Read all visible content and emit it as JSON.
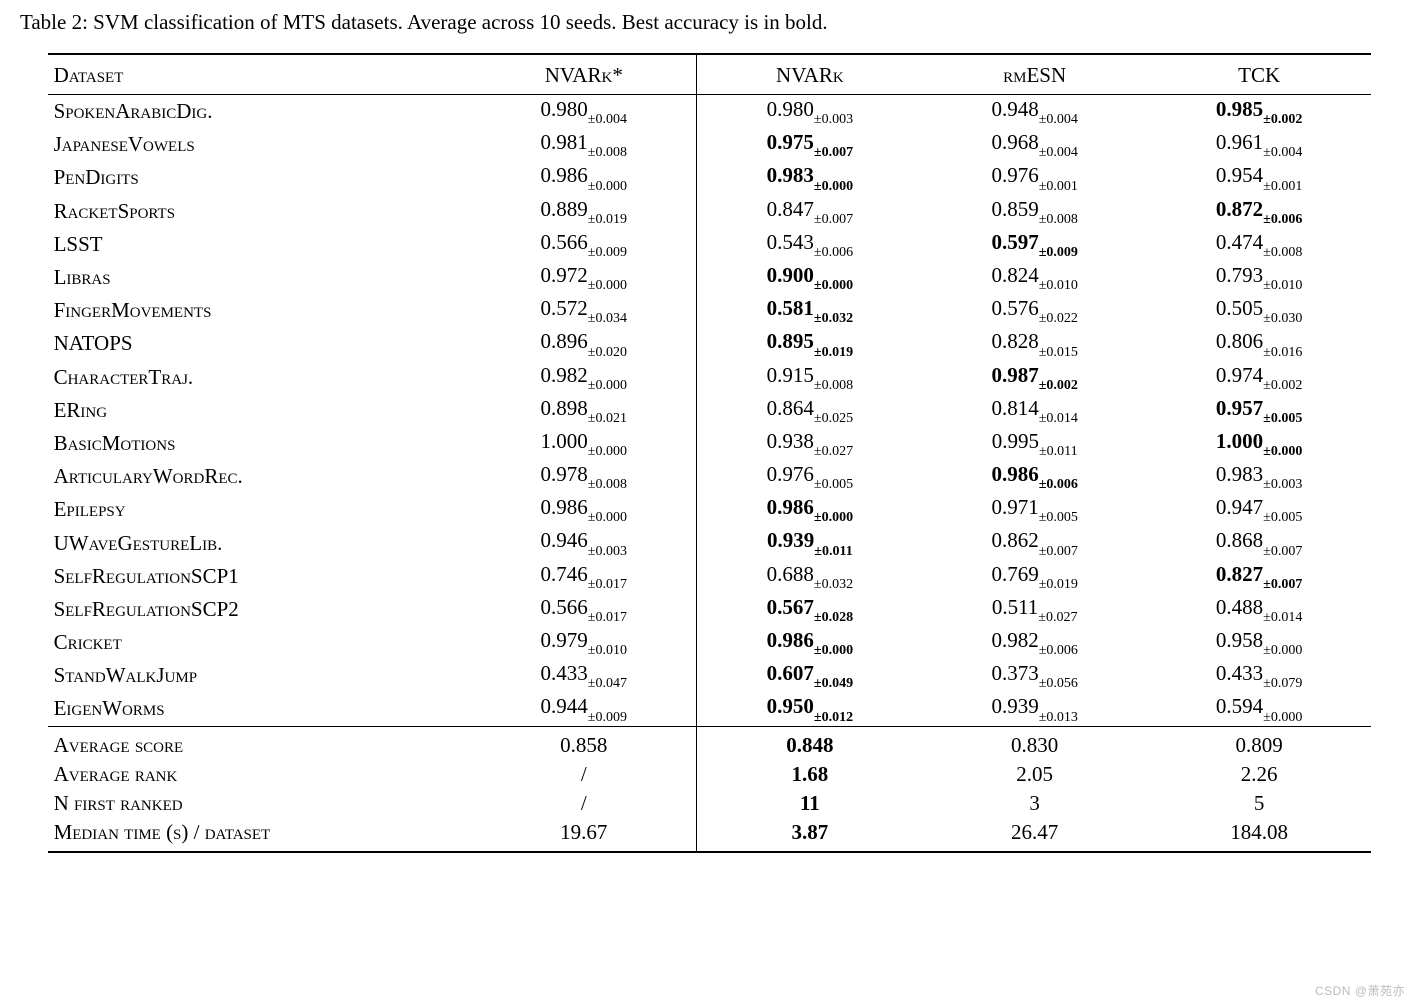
{
  "caption": "Table 2: SVM classification of MTS datasets. Average across 10 seeds. Best accuracy is in bold.",
  "columns": {
    "dataset": "Dataset",
    "col1": "NVARk*",
    "col2": "NVARk",
    "col3": "rmESN",
    "col4": "TCK"
  },
  "rows": [
    {
      "name": "SpokenArabicDig.",
      "c1": {
        "v": "0.980",
        "e": "±0.004",
        "b": false
      },
      "c2": {
        "v": "0.980",
        "e": "±0.003",
        "b": false
      },
      "c3": {
        "v": "0.948",
        "e": "±0.004",
        "b": false
      },
      "c4": {
        "v": "0.985",
        "e": "±0.002",
        "b": true
      }
    },
    {
      "name": "JapaneseVowels",
      "c1": {
        "v": "0.981",
        "e": "±0.008",
        "b": false
      },
      "c2": {
        "v": "0.975",
        "e": "±0.007",
        "b": true
      },
      "c3": {
        "v": "0.968",
        "e": "±0.004",
        "b": false
      },
      "c4": {
        "v": "0.961",
        "e": "±0.004",
        "b": false
      }
    },
    {
      "name": "PenDigits",
      "c1": {
        "v": "0.986",
        "e": "±0.000",
        "b": false
      },
      "c2": {
        "v": "0.983",
        "e": "±0.000",
        "b": true
      },
      "c3": {
        "v": "0.976",
        "e": "±0.001",
        "b": false
      },
      "c4": {
        "v": "0.954",
        "e": "±0.001",
        "b": false
      }
    },
    {
      "name": "RacketSports",
      "c1": {
        "v": "0.889",
        "e": "±0.019",
        "b": false
      },
      "c2": {
        "v": "0.847",
        "e": "±0.007",
        "b": false
      },
      "c3": {
        "v": "0.859",
        "e": "±0.008",
        "b": false
      },
      "c4": {
        "v": "0.872",
        "e": "±0.006",
        "b": true
      }
    },
    {
      "name": "LSST",
      "c1": {
        "v": "0.566",
        "e": "±0.009",
        "b": false
      },
      "c2": {
        "v": "0.543",
        "e": "±0.006",
        "b": false
      },
      "c3": {
        "v": "0.597",
        "e": "±0.009",
        "b": true
      },
      "c4": {
        "v": "0.474",
        "e": "±0.008",
        "b": false
      }
    },
    {
      "name": "Libras",
      "c1": {
        "v": "0.972",
        "e": "±0.000",
        "b": false
      },
      "c2": {
        "v": "0.900",
        "e": "±0.000",
        "b": true
      },
      "c3": {
        "v": "0.824",
        "e": "±0.010",
        "b": false
      },
      "c4": {
        "v": "0.793",
        "e": "±0.010",
        "b": false
      }
    },
    {
      "name": "FingerMovements",
      "c1": {
        "v": "0.572",
        "e": "±0.034",
        "b": false
      },
      "c2": {
        "v": "0.581",
        "e": "±0.032",
        "b": true
      },
      "c3": {
        "v": "0.576",
        "e": "±0.022",
        "b": false
      },
      "c4": {
        "v": "0.505",
        "e": "±0.030",
        "b": false
      }
    },
    {
      "name": "NATOPS",
      "c1": {
        "v": "0.896",
        "e": "±0.020",
        "b": false
      },
      "c2": {
        "v": "0.895",
        "e": "±0.019",
        "b": true
      },
      "c3": {
        "v": "0.828",
        "e": "±0.015",
        "b": false
      },
      "c4": {
        "v": "0.806",
        "e": "±0.016",
        "b": false
      }
    },
    {
      "name": "CharacterTraj.",
      "c1": {
        "v": "0.982",
        "e": "±0.000",
        "b": false
      },
      "c2": {
        "v": "0.915",
        "e": "±0.008",
        "b": false
      },
      "c3": {
        "v": "0.987",
        "e": "±0.002",
        "b": true
      },
      "c4": {
        "v": "0.974",
        "e": "±0.002",
        "b": false
      }
    },
    {
      "name": "ERing",
      "c1": {
        "v": "0.898",
        "e": "±0.021",
        "b": false
      },
      "c2": {
        "v": "0.864",
        "e": "±0.025",
        "b": false
      },
      "c3": {
        "v": "0.814",
        "e": "±0.014",
        "b": false
      },
      "c4": {
        "v": "0.957",
        "e": "±0.005",
        "b": true
      }
    },
    {
      "name": "BasicMotions",
      "c1": {
        "v": "1.000",
        "e": "±0.000",
        "b": false
      },
      "c2": {
        "v": "0.938",
        "e": "±0.027",
        "b": false
      },
      "c3": {
        "v": "0.995",
        "e": "±0.011",
        "b": false
      },
      "c4": {
        "v": "1.000",
        "e": "±0.000",
        "b": true
      }
    },
    {
      "name": "ArticularyWordRec.",
      "c1": {
        "v": "0.978",
        "e": "±0.008",
        "b": false
      },
      "c2": {
        "v": "0.976",
        "e": "±0.005",
        "b": false
      },
      "c3": {
        "v": "0.986",
        "e": "±0.006",
        "b": true
      },
      "c4": {
        "v": "0.983",
        "e": "±0.003",
        "b": false
      }
    },
    {
      "name": "Epilepsy",
      "c1": {
        "v": "0.986",
        "e": "±0.000",
        "b": false
      },
      "c2": {
        "v": "0.986",
        "e": "±0.000",
        "b": true
      },
      "c3": {
        "v": "0.971",
        "e": "±0.005",
        "b": false
      },
      "c4": {
        "v": "0.947",
        "e": "±0.005",
        "b": false
      }
    },
    {
      "name": "UWaveGestureLib.",
      "c1": {
        "v": "0.946",
        "e": "±0.003",
        "b": false
      },
      "c2": {
        "v": "0.939",
        "e": "±0.011",
        "b": true
      },
      "c3": {
        "v": "0.862",
        "e": "±0.007",
        "b": false
      },
      "c4": {
        "v": "0.868",
        "e": "±0.007",
        "b": false
      }
    },
    {
      "name": "SelfRegulationSCP1",
      "c1": {
        "v": "0.746",
        "e": "±0.017",
        "b": false
      },
      "c2": {
        "v": "0.688",
        "e": "±0.032",
        "b": false
      },
      "c3": {
        "v": "0.769",
        "e": "±0.019",
        "b": false
      },
      "c4": {
        "v": "0.827",
        "e": "±0.007",
        "b": true
      }
    },
    {
      "name": "SelfRegulationSCP2",
      "c1": {
        "v": "0.566",
        "e": "±0.017",
        "b": false
      },
      "c2": {
        "v": "0.567",
        "e": "±0.028",
        "b": true
      },
      "c3": {
        "v": "0.511",
        "e": "±0.027",
        "b": false
      },
      "c4": {
        "v": "0.488",
        "e": "±0.014",
        "b": false
      }
    },
    {
      "name": "Cricket",
      "c1": {
        "v": "0.979",
        "e": "±0.010",
        "b": false
      },
      "c2": {
        "v": "0.986",
        "e": "±0.000",
        "b": true
      },
      "c3": {
        "v": "0.982",
        "e": "±0.006",
        "b": false
      },
      "c4": {
        "v": "0.958",
        "e": "±0.000",
        "b": false
      }
    },
    {
      "name": "StandWalkJump",
      "c1": {
        "v": "0.433",
        "e": "±0.047",
        "b": false
      },
      "c2": {
        "v": "0.607",
        "e": "±0.049",
        "b": true
      },
      "c3": {
        "v": "0.373",
        "e": "±0.056",
        "b": false
      },
      "c4": {
        "v": "0.433",
        "e": "±0.079",
        "b": false
      }
    },
    {
      "name": "EigenWorms",
      "c1": {
        "v": "0.944",
        "e": "±0.009",
        "b": false
      },
      "c2": {
        "v": "0.950",
        "e": "±0.012",
        "b": true
      },
      "c3": {
        "v": "0.939",
        "e": "±0.013",
        "b": false
      },
      "c4": {
        "v": "0.594",
        "e": "±0.000",
        "b": false
      }
    }
  ],
  "summary": [
    {
      "name": "Average score",
      "c1": "0.858",
      "c2": "0.848",
      "c3": "0.830",
      "c4": "0.809",
      "bold_col": "c2"
    },
    {
      "name": "Average rank",
      "c1": "/",
      "c2": "1.68",
      "c3": "2.05",
      "c4": "2.26",
      "bold_col": "c2"
    },
    {
      "name": "N first ranked",
      "c1": "/",
      "c2": "11",
      "c3": "3",
      "c4": "5",
      "bold_col": "c2"
    },
    {
      "name": "Median time (s) / dataset",
      "c1": "19.67",
      "c2": "3.87",
      "c3": "26.47",
      "c4": "184.08",
      "bold_col": "c2"
    }
  ],
  "watermark": "CSDN @萧苑亦"
}
